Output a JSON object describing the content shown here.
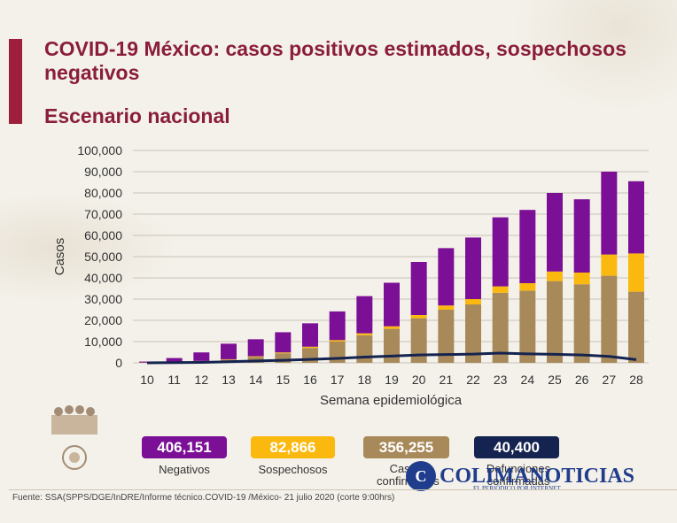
{
  "header": {
    "title": "COVID-19 México: casos positivos estimados, sospechosos negativos",
    "subtitle": "Escenario nacional"
  },
  "colors": {
    "negativos": "#7b0f95",
    "sospechosos": "#fbb90f",
    "confirmados": "#a8895a",
    "defunciones": "#14234f",
    "accent": "#9d1f3c"
  },
  "chart_data": {
    "type": "bar",
    "stacked": true,
    "xlabel": "Semana epidemiológica",
    "ylabel": "Casos",
    "ylim": [
      0,
      100000
    ],
    "yticks": [
      0,
      10000,
      20000,
      30000,
      40000,
      50000,
      60000,
      70000,
      80000,
      90000,
      100000
    ],
    "ytick_labels": [
      "0",
      "10,000",
      "20,000",
      "30,000",
      "40,000",
      "50,000",
      "60,000",
      "70,000",
      "80,000",
      "90,000",
      "100,000"
    ],
    "grid": true,
    "categories": [
      "10",
      "11",
      "12",
      "13",
      "14",
      "15",
      "16",
      "17",
      "18",
      "19",
      "20",
      "21",
      "22",
      "23",
      "24",
      "25",
      "26",
      "27",
      "28"
    ],
    "series": [
      {
        "name": "Casos confirmados",
        "kind": "bar",
        "values": [
          200,
          400,
          800,
          1500,
          2800,
          4500,
          7000,
          10000,
          13000,
          16000,
          21000,
          25000,
          27500,
          33000,
          34000,
          38500,
          37000,
          41000,
          33500
        ]
      },
      {
        "name": "Sospechosos",
        "kind": "bar",
        "values": [
          0,
          50,
          100,
          200,
          300,
          400,
          600,
          700,
          900,
          1200,
          1500,
          2000,
          2500,
          3000,
          3500,
          4500,
          5500,
          10000,
          18000
        ]
      },
      {
        "name": "Negativos",
        "kind": "bar",
        "values": [
          400,
          1800,
          4000,
          7300,
          8000,
          9500,
          11000,
          13500,
          17500,
          20500,
          25000,
          27000,
          29000,
          32500,
          34500,
          37000,
          34500,
          39000,
          34000
        ]
      },
      {
        "name": "Defunciones confirmadas",
        "kind": "line",
        "values": [
          0,
          100,
          200,
          500,
          900,
          1200,
          1600,
          2100,
          2700,
          3200,
          3700,
          3900,
          4100,
          4600,
          4200,
          4000,
          3700,
          3000,
          1500
        ]
      }
    ]
  },
  "legend": [
    {
      "value": "406,151",
      "label": "Negativos"
    },
    {
      "value": "82,866",
      "label": "Sospechosos"
    },
    {
      "value": "356,255",
      "label": "Casos confirmados"
    },
    {
      "value": "40,400",
      "label": "Defunciones confirmadas"
    }
  ],
  "logo": {
    "letter": "C",
    "name": "COLIMANOTICIAS",
    "tagline": "EL PERIÓDICO POR INTERNET"
  },
  "footer": {
    "source": "Fuente: SSA(SPPS/DGE/InDRE/Informe técnico.COVID-19 /México- 21 julio 2020 (corte 9:00hrs)"
  }
}
